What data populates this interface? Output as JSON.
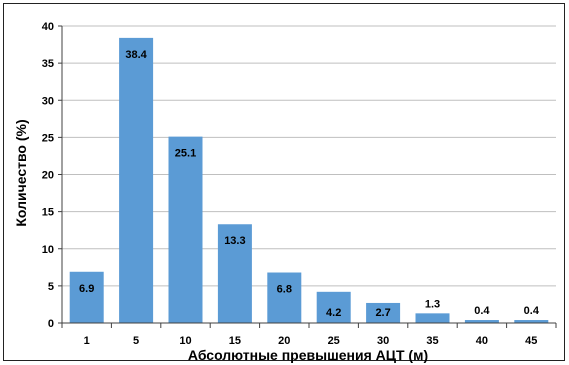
{
  "chart_data": {
    "type": "bar",
    "categories": [
      "1",
      "5",
      "10",
      "15",
      "20",
      "25",
      "30",
      "35",
      "40",
      "45"
    ],
    "values": [
      6.9,
      38.4,
      25.1,
      13.3,
      6.8,
      4.2,
      2.7,
      1.3,
      0.4,
      0.4
    ],
    "data_labels": [
      "6.9",
      "38.4",
      "25.1",
      "13.3",
      "6.8",
      "4.2",
      "2.7",
      "1.3",
      "0.4",
      "0.4"
    ],
    "xlabel": "Абсолютные превышения АЦТ (м)",
    "ylabel": "Количество (%)",
    "ylim": [
      0,
      40
    ],
    "yticks": [
      "0",
      "5",
      "10",
      "15",
      "20",
      "25",
      "30",
      "35",
      "40"
    ],
    "grid": true,
    "legend": "none",
    "colors": {
      "bar": "#5b9bd5",
      "grid": "#bfbfbf",
      "axis": "#404040"
    }
  }
}
